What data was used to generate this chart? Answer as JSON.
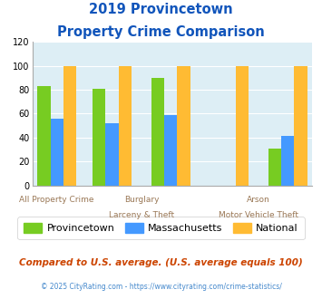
{
  "title_line1": "2019 Provincetown",
  "title_line2": "Property Crime Comparison",
  "groups": [
    {
      "label": "All Property Crime",
      "provincetown": 83,
      "massachusetts": 56,
      "national": 100
    },
    {
      "label": "Burglary",
      "provincetown": 81,
      "massachusetts": 52,
      "national": 100
    },
    {
      "label": "Larceny & Theft",
      "provincetown": 90,
      "massachusetts": 59,
      "national": 100
    },
    {
      "label": "Arson",
      "provincetown": 0,
      "massachusetts": 0,
      "national": 100
    },
    {
      "label": "Motor Vehicle Theft",
      "provincetown": 31,
      "massachusetts": 41,
      "national": 100
    }
  ],
  "color_provincetown": "#77cc22",
  "color_massachusetts": "#4499ff",
  "color_national": "#ffbb33",
  "ylim": [
    0,
    120
  ],
  "yticks": [
    0,
    20,
    40,
    60,
    80,
    100,
    120
  ],
  "background_color": "#ddeef5",
  "title_color": "#1155bb",
  "xlabel_color": "#997755",
  "footnote1": "Compared to U.S. average. (U.S. average equals 100)",
  "footnote2": "© 2025 CityRating.com - https://www.cityrating.com/crime-statistics/",
  "footnote1_color": "#cc4400",
  "footnote2_color": "#4488cc",
  "bar_width": 0.2,
  "positions": [
    0,
    0.85,
    1.75,
    2.65,
    3.55
  ]
}
